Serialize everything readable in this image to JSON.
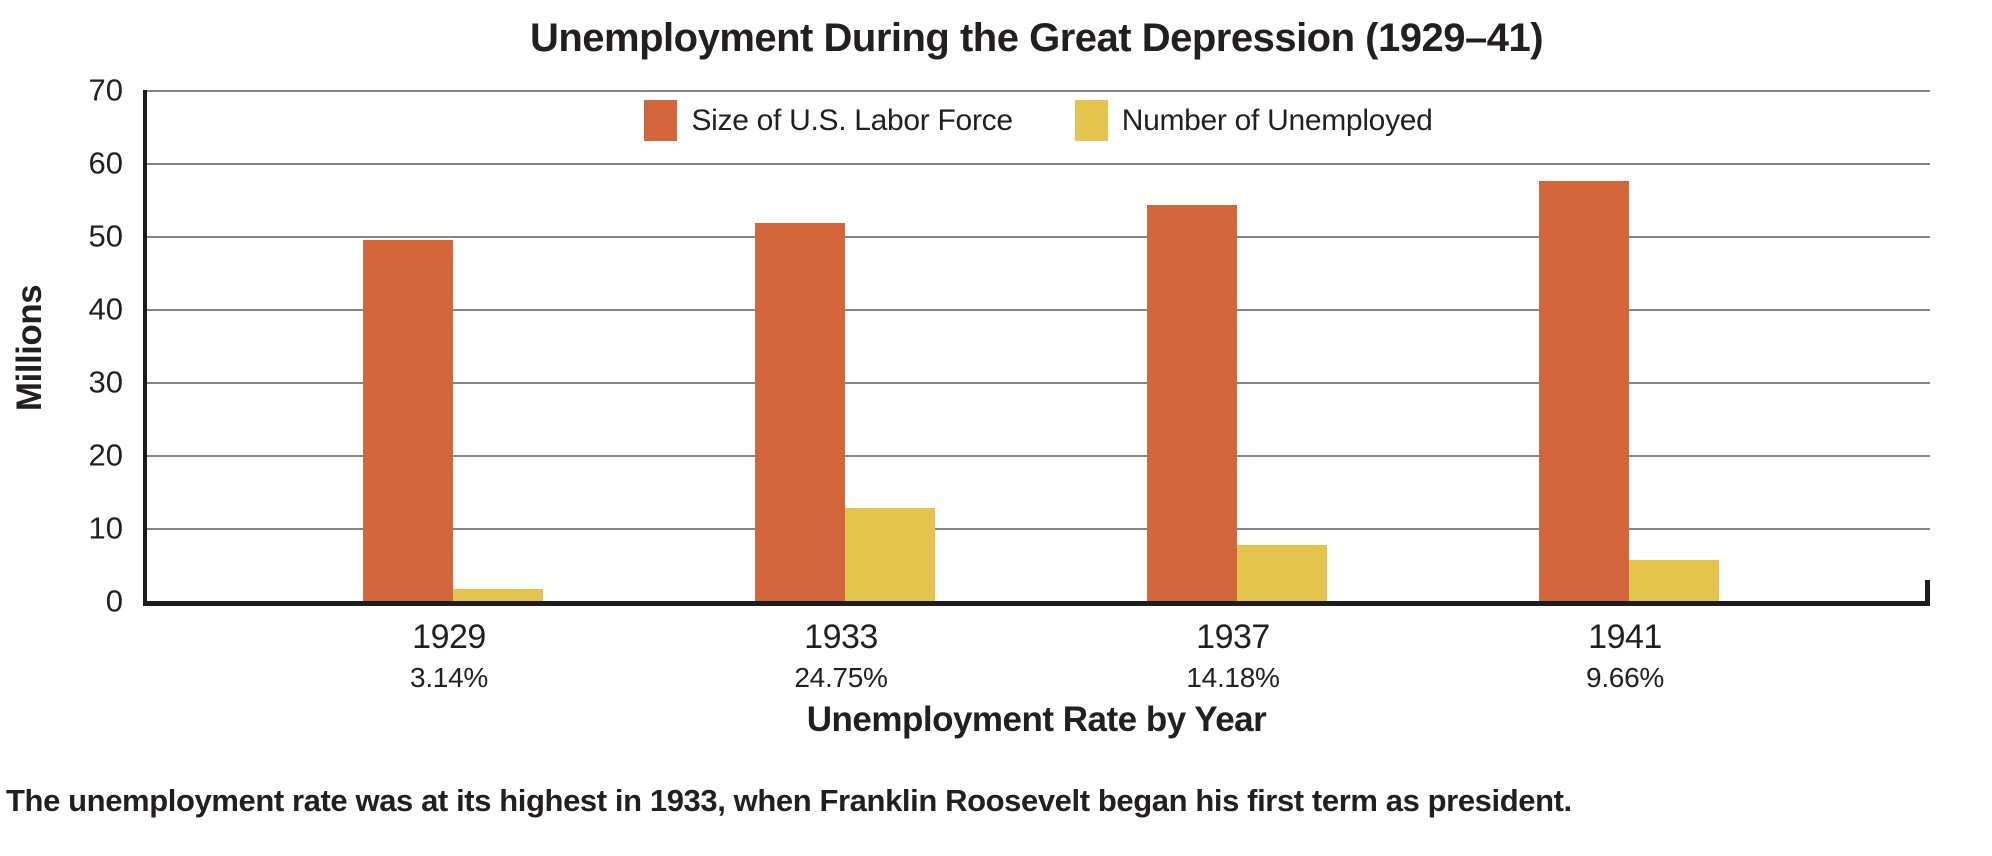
{
  "chart_data": {
    "type": "bar",
    "title": "Unemployment During the Great Depression (1929–41)",
    "ylabel": "Millions",
    "xlabel": "Unemployment Rate by Year",
    "ylim": [
      0,
      70
    ],
    "yticks": [
      0,
      10,
      20,
      30,
      40,
      50,
      60,
      70
    ],
    "grid": true,
    "legend_position": "top-center",
    "categories": [
      "1929",
      "1933",
      "1937",
      "1941"
    ],
    "rate_labels": [
      "3.14%",
      "24.75%",
      "14.18%",
      "9.66%"
    ],
    "series": [
      {
        "name": "Size of U.S. Labor Force",
        "color": "#D2653A",
        "values": [
          49.4,
          51.8,
          54.3,
          57.5
        ]
      },
      {
        "name": "Number of Unemployed",
        "color": "#E5C44E",
        "values": [
          1.6,
          12.8,
          7.7,
          5.6
        ]
      }
    ],
    "caption": "The unemployment rate was at its highest in 1933, when Franklin Roosevelt began his first term as president."
  }
}
